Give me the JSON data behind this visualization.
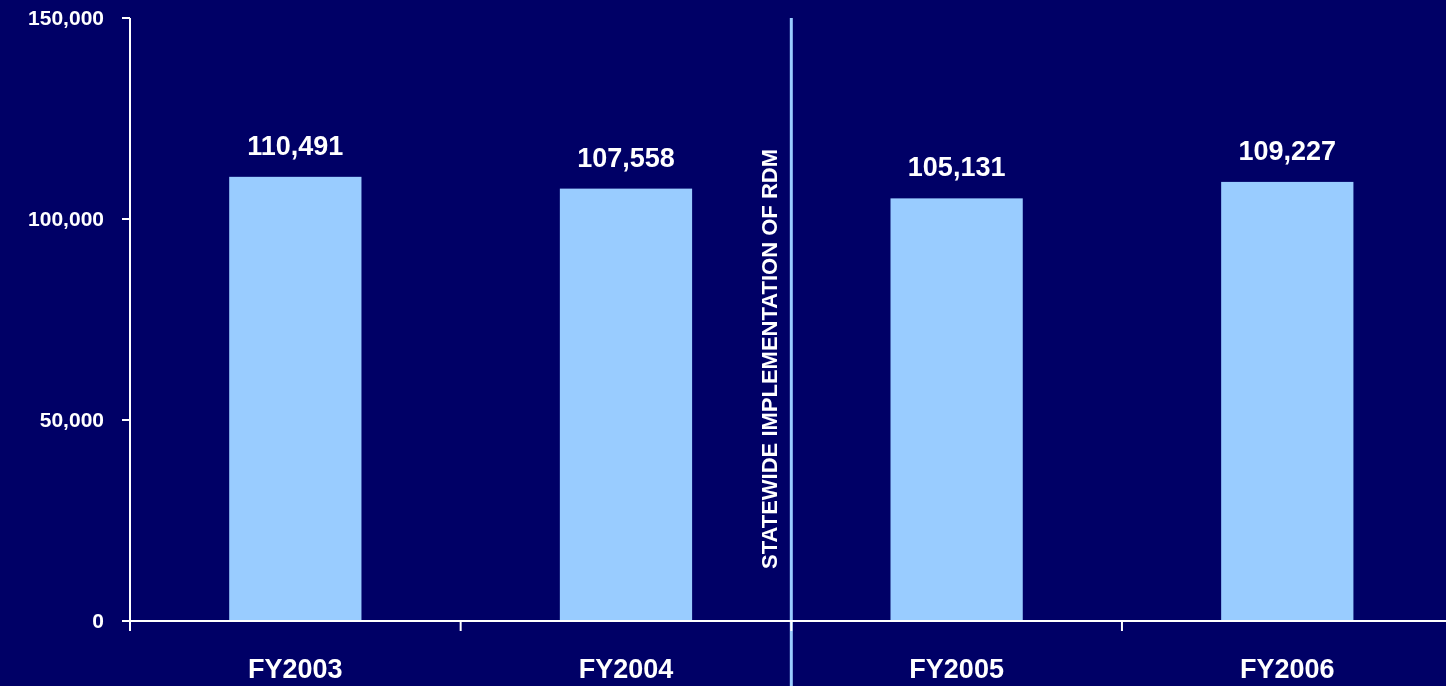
{
  "chart_data": {
    "type": "bar",
    "categories": [
      "FY2003",
      "FY2004",
      "FY2005",
      "FY2006"
    ],
    "values": [
      110491,
      107558,
      105131,
      109227
    ],
    "color": "#99ccff",
    "value_labels": [
      "110,491",
      "107,558",
      "105,131",
      "109,227"
    ],
    "ylim": [
      0,
      150000
    ],
    "yticks": [
      {
        "value": 0,
        "label": "0"
      },
      {
        "value": 50000,
        "label": "50,000"
      },
      {
        "value": 100000,
        "label": "100,000"
      },
      {
        "value": 150000,
        "label": "150,000"
      }
    ],
    "ref_lines": [
      {
        "axis": "x",
        "value": "FY2005",
        "label": "STATEWIDE IMPLEMENTATION OF RDM",
        "color": "#99ccff"
      }
    ]
  }
}
